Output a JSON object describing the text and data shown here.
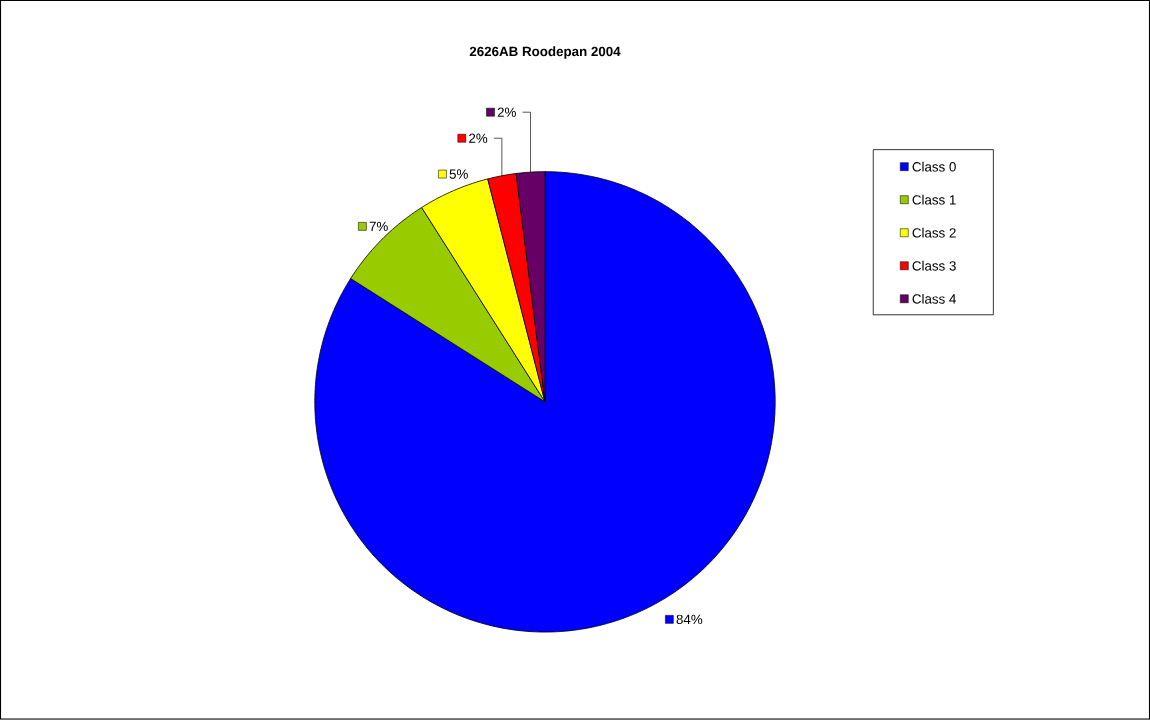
{
  "chart_data": {
    "type": "pie",
    "title": "2626AB Roodepan 2004",
    "categories": [
      "Class 0",
      "Class 1",
      "Class 2",
      "Class 3",
      "Class 4"
    ],
    "values": [
      84,
      7,
      5,
      2,
      2
    ],
    "value_labels": [
      "84%",
      "7%",
      "5%",
      "2%",
      "2%"
    ],
    "colors": [
      "#0000ff",
      "#99cc00",
      "#ffff00",
      "#ff0000",
      "#660066"
    ],
    "legend": "right"
  }
}
